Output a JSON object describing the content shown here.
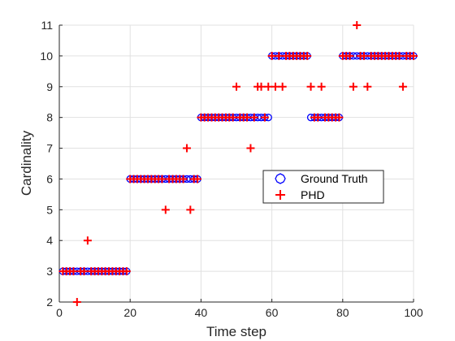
{
  "chart_data": {
    "type": "scatter",
    "title": "",
    "xlabel": "Time step",
    "ylabel": "Cardinality",
    "xlim": [
      0,
      100
    ],
    "ylim": [
      2,
      11
    ],
    "xticks": [
      0,
      20,
      40,
      60,
      80,
      100
    ],
    "yticks": [
      2,
      3,
      4,
      5,
      6,
      7,
      8,
      9,
      10,
      11
    ],
    "grid": true,
    "legend_position": "center-right",
    "series": [
      {
        "name": "Ground Truth",
        "marker": "circle",
        "color": "#0000ff",
        "x": [
          1,
          2,
          3,
          4,
          5,
          6,
          7,
          8,
          9,
          10,
          11,
          12,
          13,
          14,
          15,
          16,
          17,
          18,
          19,
          20,
          21,
          22,
          23,
          24,
          25,
          26,
          27,
          28,
          29,
          30,
          31,
          32,
          33,
          34,
          35,
          36,
          37,
          38,
          39,
          40,
          41,
          42,
          43,
          44,
          45,
          46,
          47,
          48,
          49,
          50,
          51,
          52,
          53,
          54,
          55,
          56,
          57,
          58,
          59,
          60,
          61,
          62,
          63,
          64,
          65,
          66,
          67,
          68,
          69,
          70,
          71,
          72,
          73,
          74,
          75,
          76,
          77,
          78,
          79,
          80,
          81,
          82,
          83,
          84,
          85,
          86,
          87,
          88,
          89,
          90,
          91,
          92,
          93,
          94,
          95,
          96,
          97,
          98,
          99,
          100
        ],
        "y": [
          3,
          3,
          3,
          3,
          3,
          3,
          3,
          3,
          3,
          3,
          3,
          3,
          3,
          3,
          3,
          3,
          3,
          3,
          3,
          6,
          6,
          6,
          6,
          6,
          6,
          6,
          6,
          6,
          6,
          6,
          6,
          6,
          6,
          6,
          6,
          6,
          6,
          6,
          6,
          8,
          8,
          8,
          8,
          8,
          8,
          8,
          8,
          8,
          8,
          8,
          8,
          8,
          8,
          8,
          8,
          8,
          8,
          8,
          8,
          10,
          10,
          10,
          10,
          10,
          10,
          10,
          10,
          10,
          10,
          10,
          8,
          8,
          8,
          8,
          8,
          8,
          8,
          8,
          8,
          10,
          10,
          10,
          10,
          10,
          10,
          10,
          10,
          10,
          10,
          10,
          10,
          10,
          10,
          10,
          10,
          10,
          10,
          10,
          10,
          10
        ]
      },
      {
        "name": "PHD",
        "marker": "plus",
        "color": "#ff0000",
        "x": [
          1,
          2,
          3,
          4,
          5,
          6,
          7,
          8,
          9,
          10,
          11,
          12,
          13,
          14,
          15,
          16,
          17,
          18,
          19,
          20,
          21,
          22,
          23,
          24,
          25,
          26,
          27,
          28,
          29,
          30,
          31,
          32,
          33,
          34,
          35,
          36,
          37,
          38,
          39,
          40,
          41,
          42,
          43,
          44,
          45,
          46,
          47,
          48,
          49,
          50,
          51,
          52,
          53,
          54,
          55,
          56,
          57,
          58,
          59,
          60,
          61,
          62,
          63,
          64,
          65,
          66,
          67,
          68,
          69,
          70,
          71,
          72,
          73,
          74,
          75,
          76,
          77,
          78,
          79,
          80,
          81,
          82,
          83,
          84,
          85,
          86,
          87,
          88,
          89,
          90,
          91,
          92,
          93,
          94,
          95,
          96,
          97,
          98,
          99,
          100
        ],
        "y": [
          3,
          3,
          3,
          3,
          2,
          3,
          3,
          4,
          3,
          3,
          3,
          3,
          3,
          3,
          3,
          3,
          3,
          3,
          3,
          6,
          6,
          6,
          6,
          6,
          6,
          6,
          6,
          6,
          6,
          5,
          6,
          6,
          6,
          6,
          6,
          7,
          5,
          6,
          6,
          8,
          8,
          8,
          8,
          8,
          8,
          8,
          8,
          8,
          8,
          9,
          8,
          8,
          8,
          7,
          8,
          9,
          9,
          8,
          9,
          10,
          9,
          10,
          9,
          10,
          10,
          10,
          10,
          10,
          10,
          10,
          9,
          8,
          8,
          9,
          8,
          8,
          8,
          8,
          8,
          10,
          10,
          10,
          9,
          11,
          10,
          10,
          9,
          10,
          10,
          10,
          10,
          10,
          10,
          10,
          10,
          10,
          9,
          10,
          10,
          10
        ]
      }
    ]
  }
}
